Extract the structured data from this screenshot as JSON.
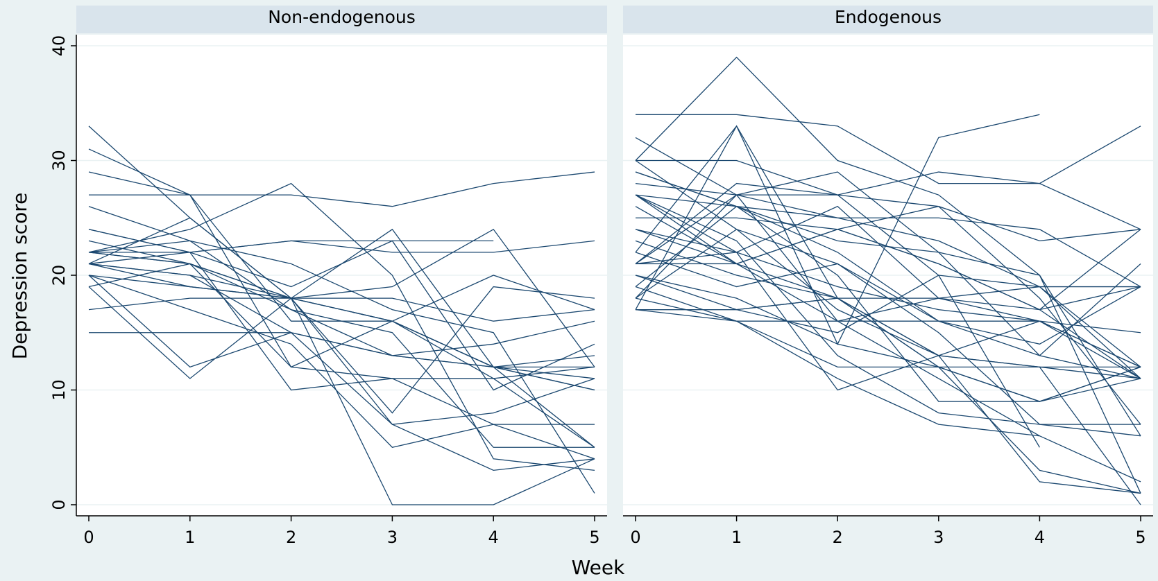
{
  "xlabel": "Week",
  "ylabel": "Depression score",
  "chart_data": [
    {
      "type": "line",
      "title": "Non-endogenous",
      "color": "#1a476f",
      "x": [
        0,
        1,
        2,
        3,
        4,
        5
      ],
      "xlim": [
        0,
        5
      ],
      "xticks": [
        0,
        1,
        2,
        3,
        4,
        5
      ],
      "ylim": [
        0,
        40
      ],
      "yticks": [
        0,
        10,
        20,
        30,
        40
      ],
      "grid": true,
      "series": [
        {
          "values": [
            27,
            27,
            27,
            26,
            28,
            29
          ]
        },
        {
          "values": [
            33,
            25,
            18,
            16,
            12,
            13
          ]
        },
        {
          "values": [
            31,
            27,
            12,
            16,
            12,
            11
          ]
        },
        {
          "values": [
            29,
            27,
            16,
            16,
            12,
            10
          ]
        },
        {
          "values": [
            22,
            22,
            23,
            22,
            22,
            23
          ]
        },
        {
          "values": [
            22,
            21,
            18,
            0,
            0,
            4
          ]
        },
        {
          "values": [
            21,
            20,
            18,
            24,
            12,
            5
          ]
        },
        {
          "values": [
            24,
            22,
            19,
            23,
            10,
            14
          ]
        },
        {
          "values": [
            15,
            15,
            15,
            13,
            12,
            12
          ]
        },
        {
          "values": [
            17,
            18,
            18,
            16,
            20,
            17
          ]
        },
        {
          "values": [
            19,
            11,
            18,
            8,
            19,
            18
          ]
        },
        {
          "values": [
            20,
            12,
            15,
            7,
            8,
            11
          ]
        },
        {
          "values": [
            22,
            24,
            28,
            20,
            4,
            3
          ]
        },
        {
          "values": [
            21,
            22,
            23,
            23,
            23,
            null
          ]
        },
        {
          "values": [
            26,
            23,
            17,
            13,
            14,
            16
          ]
        },
        {
          "values": [
            23,
            21,
            17,
            15,
            5,
            5
          ]
        },
        {
          "values": [
            20,
            19,
            18,
            16,
            11,
            5
          ]
        },
        {
          "values": [
            21,
            20,
            15,
            13,
            12,
            10
          ]
        },
        {
          "values": [
            22,
            21,
            12,
            11,
            11,
            12
          ]
        },
        {
          "values": [
            24,
            22,
            10,
            11,
            7,
            7
          ]
        },
        {
          "values": [
            20,
            17,
            14,
            5,
            7,
            4
          ]
        },
        {
          "values": [
            21,
            19,
            18,
            7,
            3,
            4
          ]
        },
        {
          "values": [
            22,
            23,
            21,
            17,
            15,
            1
          ]
        },
        {
          "values": [
            19,
            21,
            18,
            19,
            24,
            12
          ]
        },
        {
          "values": [
            21,
            25,
            18,
            18,
            16,
            17
          ]
        }
      ]
    },
    {
      "type": "line",
      "title": "Endogenous",
      "color": "#1a476f",
      "x": [
        0,
        1,
        2,
        3,
        4,
        5
      ],
      "xlim": [
        0,
        5
      ],
      "xticks": [
        0,
        1,
        2,
        3,
        4,
        5
      ],
      "ylim": [
        0,
        40
      ],
      "grid": true,
      "series": [
        {
          "values": [
            34,
            34,
            33,
            28,
            28,
            33
          ]
        },
        {
          "values": [
            30,
            39,
            30,
            27,
            20,
            6
          ]
        },
        {
          "values": [
            22,
            33,
            14,
            32,
            34,
            null
          ]
        },
        {
          "values": [
            17,
            33,
            18,
            12,
            12,
            12
          ]
        },
        {
          "values": [
            32,
            27,
            27,
            29,
            28,
            24
          ]
        },
        {
          "values": [
            30,
            30,
            27,
            26,
            23,
            24
          ]
        },
        {
          "values": [
            29,
            26,
            25,
            25,
            24,
            19
          ]
        },
        {
          "values": [
            28,
            27,
            29,
            22,
            13,
            11
          ]
        },
        {
          "values": [
            27,
            26,
            23,
            22,
            20,
            1
          ]
        },
        {
          "values": [
            27,
            21,
            24,
            26,
            18,
            7
          ]
        },
        {
          "values": [
            26,
            21,
            18,
            13,
            16,
            12
          ]
        },
        {
          "values": [
            25,
            25,
            24,
            21,
            17,
            11
          ]
        },
        {
          "values": [
            24,
            22,
            19,
            17,
            16,
            15
          ]
        },
        {
          "values": [
            21,
            27,
            25,
            23,
            19,
            12
          ]
        },
        {
          "values": [
            21,
            21,
            24,
            21,
            17,
            24
          ]
        },
        {
          "values": [
            21,
            22,
            26,
            18,
            16,
            11
          ]
        },
        {
          "values": [
            20,
            18,
            14,
            12,
            9,
            12
          ]
        },
        {
          "values": [
            19,
            16,
            16,
            16,
            16,
            12
          ]
        },
        {
          "values": [
            18,
            16,
            11,
            7,
            6,
            2
          ]
        },
        {
          "values": [
            17,
            17,
            18,
            18,
            17,
            19
          ]
        },
        {
          "values": [
            17,
            16,
            12,
            12,
            9,
            12
          ]
        },
        {
          "values": [
            17,
            17,
            18,
            13,
            12,
            11
          ]
        },
        {
          "values": [
            18,
            24,
            21,
            15,
            7,
            6
          ]
        },
        {
          "values": [
            19,
            26,
            20,
            9,
            9,
            11
          ]
        },
        {
          "values": [
            23,
            20,
            18,
            12,
            3,
            1
          ]
        },
        {
          "values": [
            24,
            21,
            16,
            11,
            6,
            null
          ]
        },
        {
          "values": [
            27,
            23,
            13,
            8,
            7,
            7
          ]
        },
        {
          "values": [
            30,
            24,
            17,
            13,
            12,
            0
          ]
        },
        {
          "values": [
            21,
            28,
            27,
            20,
            5,
            null
          ]
        },
        {
          "values": [
            29,
            26,
            22,
            16,
            14,
            19
          ]
        },
        {
          "values": [
            27,
            22,
            10,
            13,
            2,
            1
          ]
        },
        {
          "values": [
            22,
            19,
            21,
            16,
            13,
            21
          ]
        },
        {
          "values": [
            20,
            17,
            15,
            20,
            19,
            19
          ]
        },
        {
          "values": [
            18,
            27,
            16,
            18,
            19,
            11
          ]
        }
      ]
    }
  ]
}
